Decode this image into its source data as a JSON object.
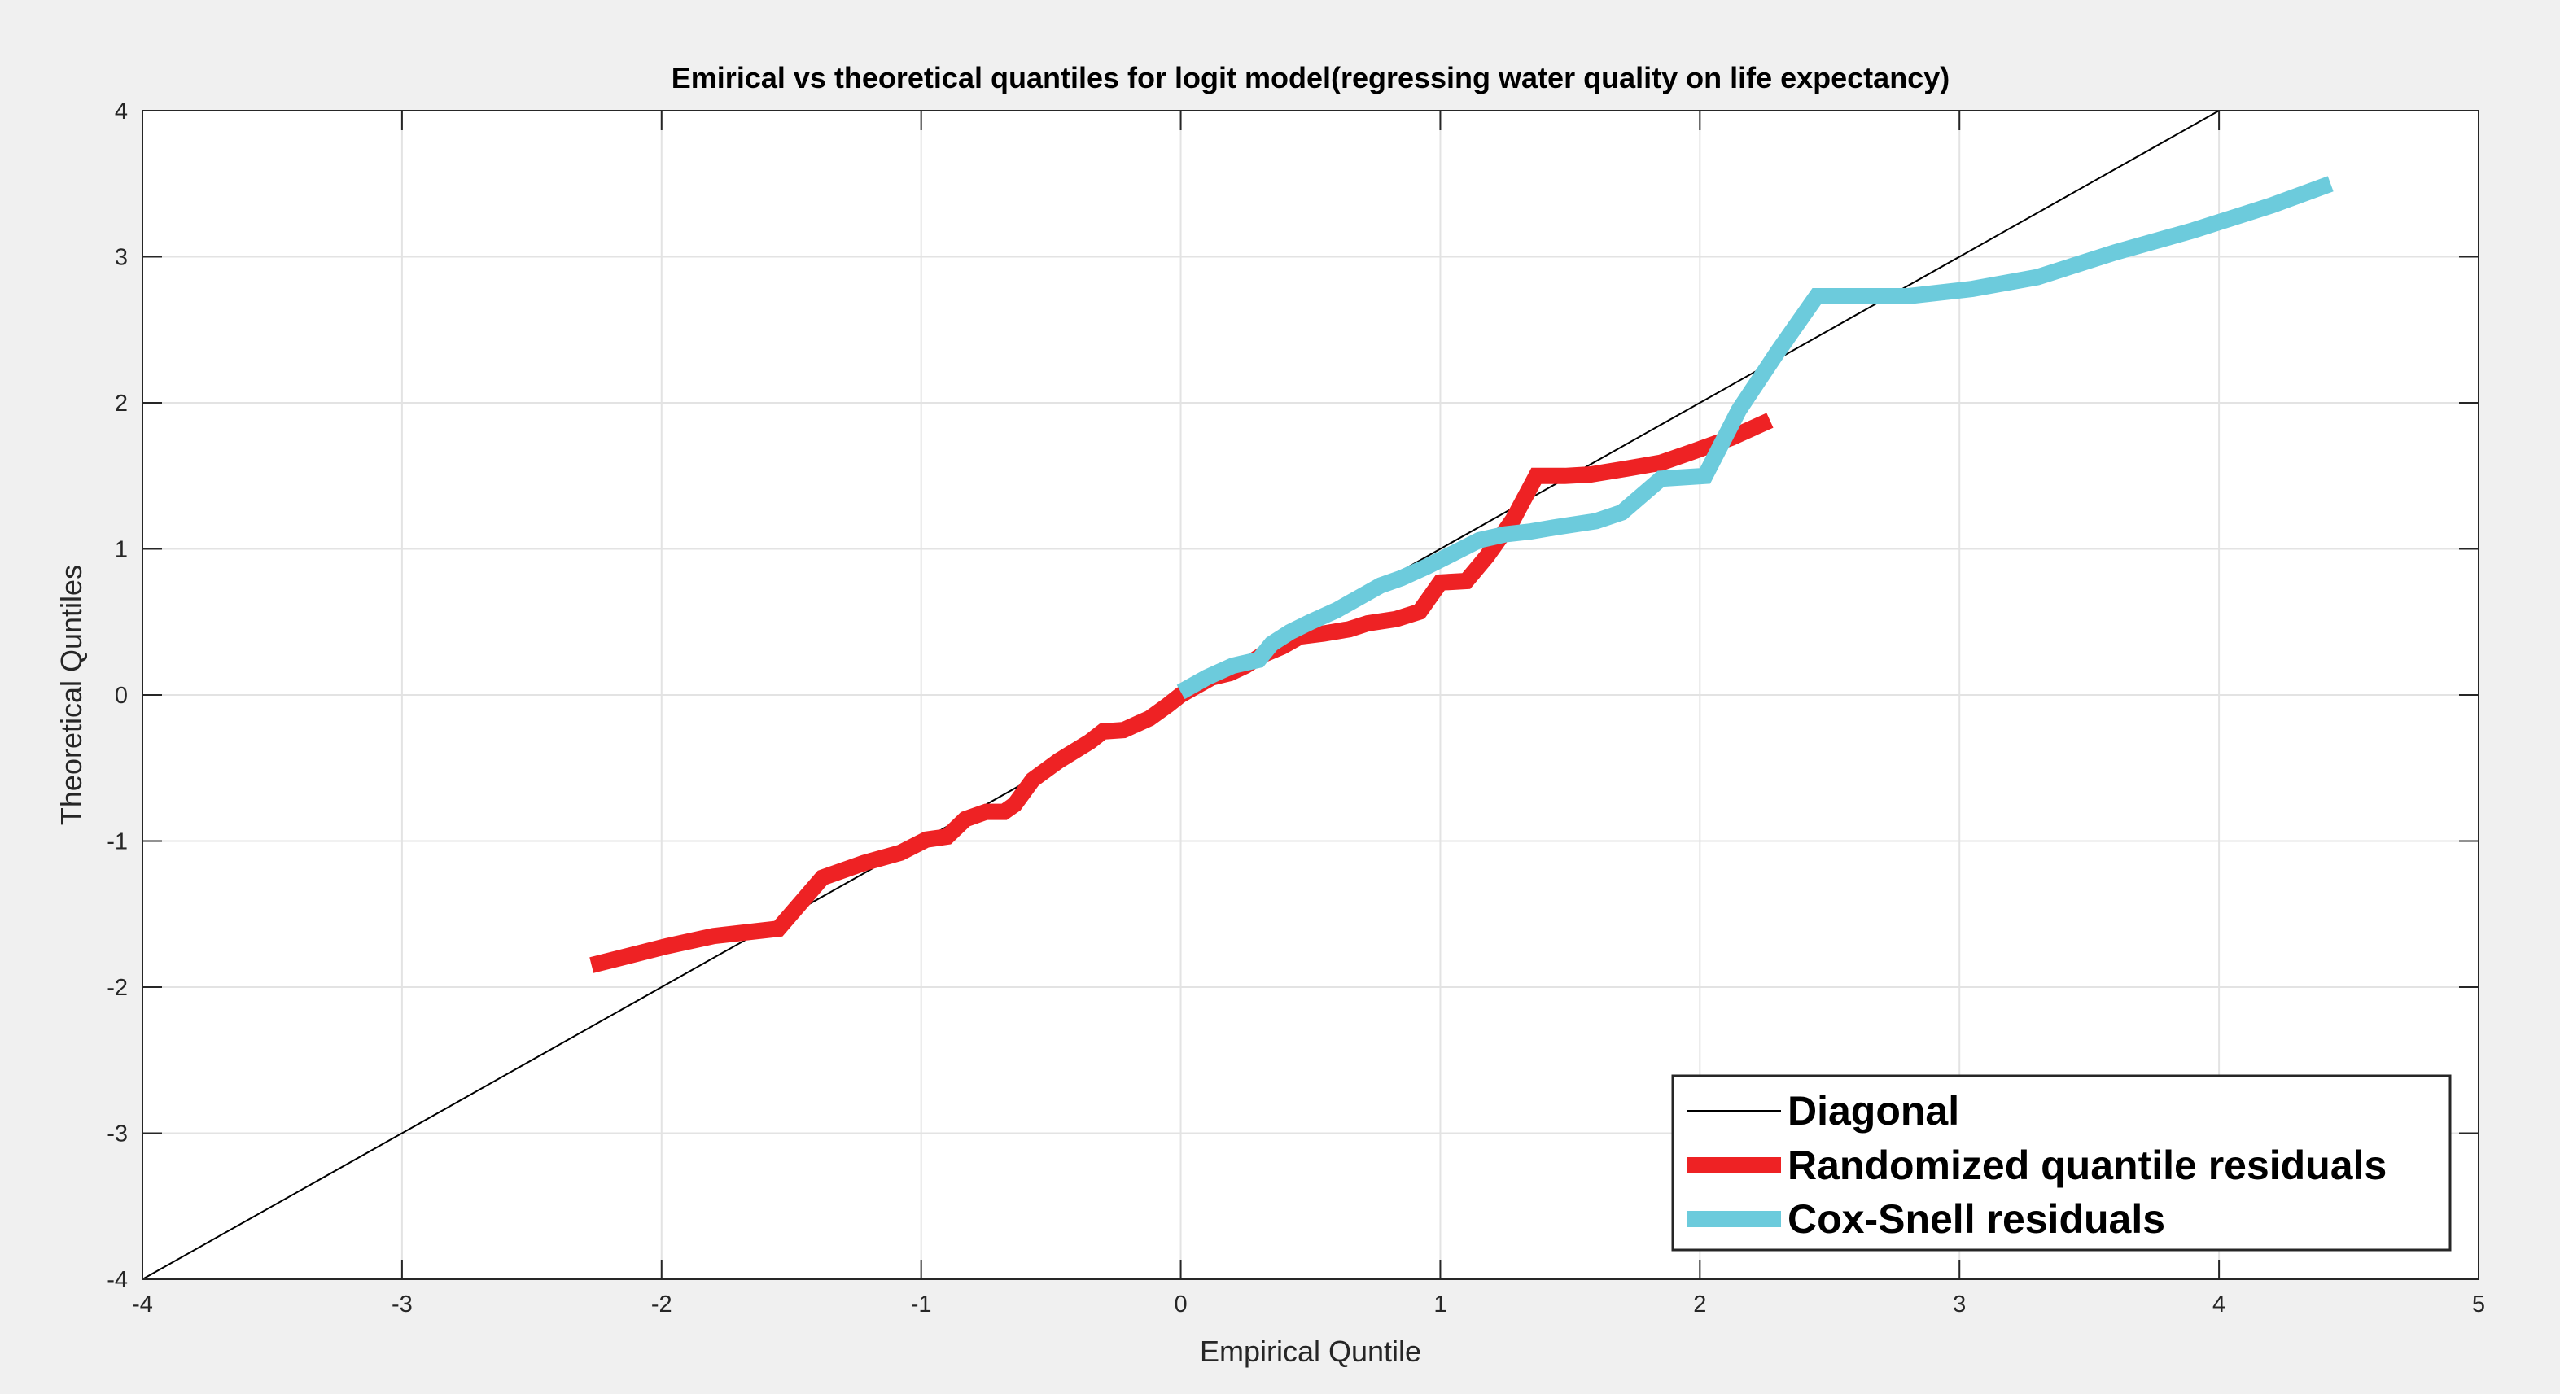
{
  "chart_data": {
    "type": "line",
    "title": "Emirical vs theoretical quantiles for logit model(regressing water quality on life expectancy)",
    "xlabel": "Empirical Quntile",
    "ylabel": "Theoretical Quntiles",
    "xlim": [
      -4,
      5
    ],
    "ylim": [
      -4,
      4
    ],
    "xticks": [
      -4,
      -3,
      -2,
      -1,
      0,
      1,
      2,
      3,
      4,
      5
    ],
    "yticks": [
      -4,
      -3,
      -2,
      -1,
      0,
      1,
      2,
      3,
      4
    ],
    "xtick_labels": [
      "-4",
      "-3",
      "-2",
      "-1",
      "0",
      "1",
      "2",
      "3",
      "4",
      "5"
    ],
    "ytick_labels": [
      "-4",
      "-3",
      "-2",
      "-1",
      "0",
      "1",
      "2",
      "3",
      "4"
    ],
    "grid": true,
    "legend_position": "bottom-right",
    "series": [
      {
        "name": "Diagonal",
        "color": "#000000",
        "x": [
          -4,
          4
        ],
        "y": [
          -4,
          4
        ]
      },
      {
        "name": "Randomized quantile residuals",
        "color": "#ee2224",
        "x": [
          -2.27,
          -1.98,
          -1.8,
          -1.55,
          -1.38,
          -1.22,
          -1.08,
          -0.98,
          -0.9,
          -0.83,
          -0.75,
          -0.68,
          -0.64,
          -0.57,
          -0.47,
          -0.35,
          -0.3,
          -0.22,
          -0.12,
          -0.05,
          0.0,
          0.05,
          0.12,
          0.19,
          0.25,
          0.31,
          0.39,
          0.46,
          0.55,
          0.65,
          0.72,
          0.83,
          0.92,
          1.0,
          1.1,
          1.18,
          1.28,
          1.37,
          1.48,
          1.58,
          1.72,
          1.85,
          1.98,
          2.12,
          2.27
        ],
        "y": [
          -1.85,
          -1.72,
          -1.65,
          -1.6,
          -1.25,
          -1.15,
          -1.08,
          -0.99,
          -0.97,
          -0.85,
          -0.8,
          -0.8,
          -0.75,
          -0.58,
          -0.45,
          -0.32,
          -0.25,
          -0.24,
          -0.16,
          -0.07,
          0.0,
          0.05,
          0.12,
          0.15,
          0.2,
          0.27,
          0.33,
          0.4,
          0.42,
          0.45,
          0.49,
          0.52,
          0.57,
          0.77,
          0.78,
          0.95,
          1.2,
          1.5,
          1.5,
          1.51,
          1.55,
          1.59,
          1.67,
          1.76,
          1.88
        ]
      },
      {
        "name": "Cox-Snell residuals",
        "color": "#6ccbdc",
        "x": [
          0.0,
          0.1,
          0.2,
          0.3,
          0.35,
          0.42,
          0.5,
          0.6,
          0.7,
          0.77,
          0.85,
          0.95,
          1.05,
          1.15,
          1.25,
          1.35,
          1.45,
          1.6,
          1.7,
          1.85,
          2.02,
          2.15,
          2.3,
          2.45,
          2.6,
          2.8,
          3.05,
          3.3,
          3.6,
          3.9,
          4.2,
          4.43
        ],
        "y": [
          0.02,
          0.12,
          0.2,
          0.24,
          0.35,
          0.43,
          0.5,
          0.58,
          0.68,
          0.75,
          0.8,
          0.88,
          0.97,
          1.06,
          1.1,
          1.12,
          1.15,
          1.19,
          1.25,
          1.48,
          1.5,
          1.95,
          2.35,
          2.73,
          2.73,
          2.73,
          2.78,
          2.86,
          3.03,
          3.18,
          3.35,
          3.5
        ]
      }
    ]
  }
}
